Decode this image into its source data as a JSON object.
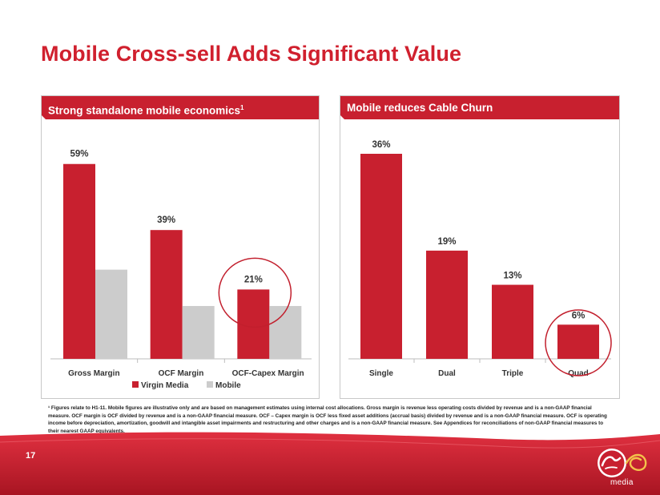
{
  "slide": {
    "title": "Mobile Cross-sell Adds Significant Value",
    "page_number": "17",
    "footnote": "¹ Figures relate to H1-11. Mobile figures are illustrative only and are based on management estimates using internal cost allocations. Gross margin is revenue less operating costs divided by revenue and is a non-GAAP financial measure.  OCF margin is OCF divided by revenue and is a non-GAAP financial measure. OCF – Capex margin is OCF less fixed asset additions (accrual basis) divided by revenue and is a non-GAAP financial measure. OCF is operating income before depreciation, amortization, goodwill and intangible asset impairments and restructuring and other charges and is a non-GAAP financial measure. See Appendices for reconciliations of non-GAAP financial measures to their nearest GAAP equivalents.",
    "logo_text": "media"
  },
  "colors": {
    "brand_red": "#d0202e",
    "bar_red": "#c8202f",
    "bar_gray": "#cccccc",
    "circle_red": "#c21f2d"
  },
  "left_panel": {
    "header": "Strong standalone mobile economics",
    "header_sup": "1"
  },
  "right_panel": {
    "header": "Mobile reduces Cable Churn"
  },
  "chart_data": [
    {
      "type": "bar",
      "title": "Strong standalone mobile economics",
      "categories": [
        "Gross Margin",
        "OCF Margin",
        "OCF-Capex Margin"
      ],
      "series": [
        {
          "name": "Virgin Media",
          "values": [
            59,
            39,
            21
          ],
          "labels": [
            "59%",
            "39%",
            "21%"
          ],
          "color": "#c8202f"
        },
        {
          "name": "Mobile",
          "values": [
            27,
            16,
            16
          ],
          "labels": [
            "",
            "",
            ""
          ],
          "color": "#cccccc"
        }
      ],
      "ylim": [
        0,
        65
      ],
      "legend": "bottom",
      "highlight_category": "OCF-Capex Margin",
      "grid": false
    },
    {
      "type": "bar",
      "title": "Mobile reduces Cable Churn",
      "categories": [
        "Single",
        "Dual",
        "Triple",
        "Quad"
      ],
      "series": [
        {
          "values": [
            36,
            19,
            13,
            6
          ],
          "labels": [
            "36%",
            "19%",
            "13%",
            "6%"
          ],
          "color": "#c8202f"
        }
      ],
      "ylim": [
        0,
        40
      ],
      "highlight_category": "Quad",
      "grid": false
    }
  ]
}
